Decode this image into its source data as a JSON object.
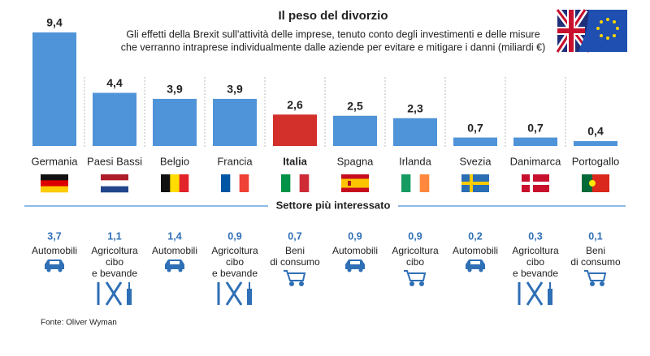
{
  "chart_data": {
    "type": "bar",
    "title": "Il peso del divorzio",
    "subtitle": [
      "Gli effetti della Brexit sull'attività delle imprese, tenuto conto degli investimenti e delle misure",
      "che verranno intraprese individualmente dalle aziende per evitare e mitigare i danni (miliardi €)"
    ],
    "categories": [
      "Germania",
      "Paesi Bassi",
      "Belgio",
      "Francia",
      "Italia",
      "Spagna",
      "Irlanda",
      "Svezia",
      "Danimarca",
      "Portogallo"
    ],
    "values": [
      9.4,
      4.4,
      3.9,
      3.9,
      2.6,
      2.5,
      2.3,
      0.7,
      0.7,
      0.4
    ],
    "value_labels": [
      "9,4",
      "4,4",
      "3,9",
      "3,9",
      "2,6",
      "2,5",
      "2,3",
      "0,7",
      "0,7",
      "0,4"
    ],
    "colors": [
      "#4f93d8",
      "#4f93d8",
      "#4f93d8",
      "#4f93d8",
      "#d3302b",
      "#4f93d8",
      "#4f93d8",
      "#4f93d8",
      "#4f93d8",
      "#4f93d8"
    ]
  },
  "sectors": {
    "title": "Settore più interessato",
    "values": [
      3.7,
      1.1,
      1.4,
      0.9,
      0.7,
      0.9,
      0.9,
      0.2,
      0.3,
      0.1
    ],
    "value_labels": [
      "3,7",
      "1,1",
      "1,4",
      "0,9",
      "0,7",
      "0,9",
      "0,9",
      "0,2",
      "0,3",
      "0,1"
    ],
    "labels": [
      [
        "Automobili"
      ],
      [
        "Agricoltura",
        "cibo",
        "e bevande"
      ],
      [
        "Automobili"
      ],
      [
        "Agricoltura",
        "cibo",
        "e bevande"
      ],
      [
        "Beni",
        "di consumo"
      ],
      [
        "Automobili"
      ],
      [
        "Agricoltura",
        "cibo"
      ],
      [
        "Automobili"
      ],
      [
        "Agricoltura",
        "cibo",
        "e bevande"
      ],
      [
        "Beni",
        "di consumo"
      ]
    ]
  },
  "source": "Fonte: Oliver Wyman"
}
